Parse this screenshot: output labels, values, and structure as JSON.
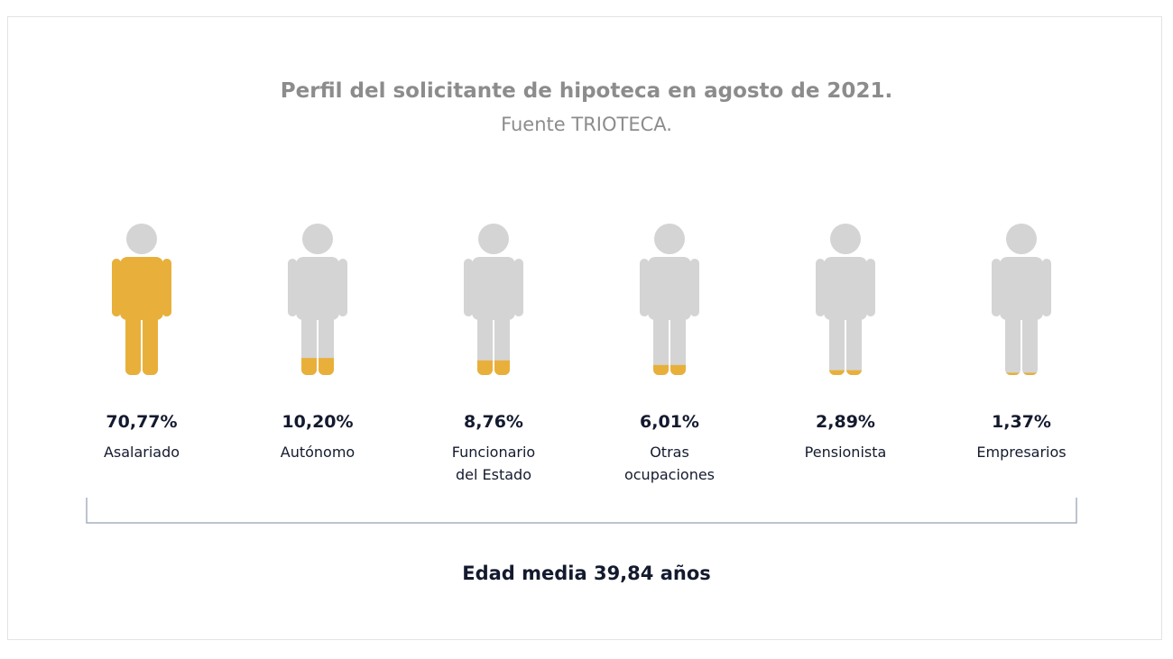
{
  "chart_data": {
    "type": "pictogram",
    "title": "Perfil del solicitante de hipoteca en agosto de 2021.",
    "subtitle": "Fuente TRIOTECA.",
    "categories": [
      "Asalariado",
      "Autónomo",
      "Funcionario del Estado",
      "Otras ocupaciones",
      "Pensionista",
      "Empresarios"
    ],
    "values": [
      70.77,
      10.2,
      8.76,
      6.01,
      2.89,
      1.37
    ],
    "value_labels": [
      "70,77%",
      "10,20%",
      "8,76%",
      "6,01%",
      "2,89%",
      "1,37%"
    ],
    "color": "#e8b03a",
    "base_color": "#d4d4d4",
    "footer": "Edad media 39,84 años"
  }
}
